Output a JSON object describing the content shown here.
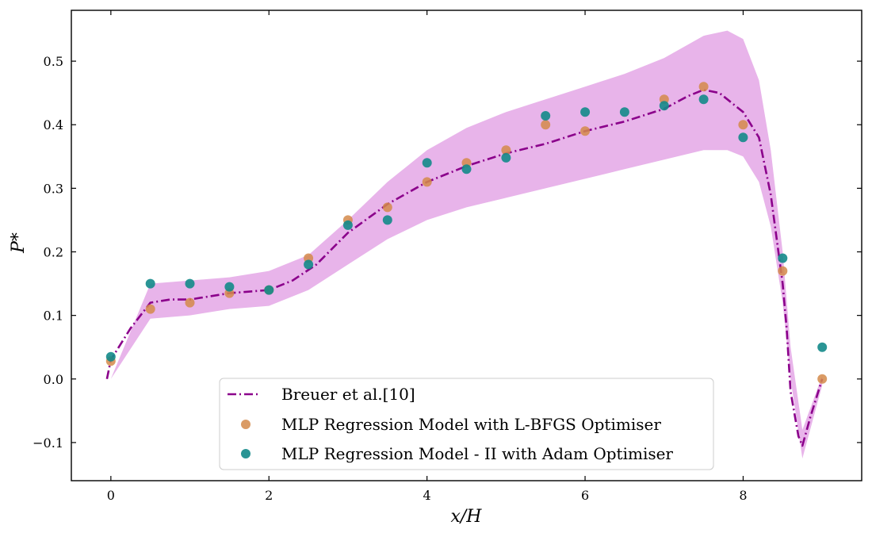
{
  "chart_data": {
    "type": "scatter",
    "title": "",
    "xlabel": "x/H",
    "ylabel": "P*",
    "xlim": [
      -0.5,
      9.5
    ],
    "ylim": [
      -0.16,
      0.58
    ],
    "xticks": [
      0,
      2,
      4,
      6,
      8
    ],
    "xtick_labels": [
      "0",
      "2",
      "4",
      "6",
      "8"
    ],
    "yticks": [
      -0.1,
      0.0,
      0.1,
      0.2,
      0.3,
      0.4,
      0.5
    ],
    "ytick_labels": [
      "−0.1",
      "0.0",
      "0.1",
      "0.2",
      "0.3",
      "0.4",
      "0.5"
    ],
    "grid": false,
    "legend_position": "bottom-center",
    "band": {
      "color": "#e8b4ea",
      "x": [
        0.0,
        0.5,
        1.0,
        1.5,
        2.0,
        2.5,
        3.0,
        3.5,
        4.0,
        4.5,
        5.0,
        5.5,
        6.0,
        6.5,
        7.0,
        7.5,
        7.8,
        8.0,
        8.2,
        8.35,
        8.5,
        8.6,
        8.75,
        9.0
      ],
      "lower": [
        0.0,
        0.095,
        0.1,
        0.11,
        0.115,
        0.14,
        0.18,
        0.22,
        0.25,
        0.27,
        0.285,
        0.3,
        0.315,
        0.33,
        0.345,
        0.36,
        0.36,
        0.35,
        0.31,
        0.24,
        0.12,
        0.0,
        -0.125,
        -0.01
      ],
      "upper": [
        0.0,
        0.15,
        0.155,
        0.16,
        0.17,
        0.195,
        0.25,
        0.31,
        0.36,
        0.395,
        0.42,
        0.44,
        0.46,
        0.48,
        0.505,
        0.54,
        0.548,
        0.535,
        0.47,
        0.36,
        0.2,
        0.05,
        -0.08,
        0.005
      ]
    },
    "series": [
      {
        "name": "Breuer et al.[10]",
        "kind": "line",
        "color": "#8b008b",
        "x": [
          -0.05,
          0.0,
          0.25,
          0.5,
          0.75,
          1.0,
          1.5,
          2.0,
          2.3,
          2.6,
          3.0,
          3.5,
          4.0,
          4.5,
          5.0,
          5.5,
          6.0,
          6.5,
          7.0,
          7.3,
          7.5,
          7.7,
          8.0,
          8.2,
          8.35,
          8.5,
          8.55,
          8.6,
          8.7,
          8.75,
          8.85,
          9.0
        ],
        "y": [
          0.0,
          0.03,
          0.08,
          0.12,
          0.125,
          0.125,
          0.135,
          0.14,
          0.155,
          0.18,
          0.23,
          0.275,
          0.31,
          0.335,
          0.355,
          0.37,
          0.39,
          0.405,
          0.425,
          0.445,
          0.455,
          0.45,
          0.42,
          0.38,
          0.29,
          0.15,
          0.08,
          -0.02,
          -0.09,
          -0.105,
          -0.06,
          0.0
        ]
      },
      {
        "name": "MLP Regression Model with L-BFGS Optimiser",
        "kind": "scatter",
        "color": "#d4894a",
        "x": [
          0,
          0.5,
          1.0,
          1.5,
          2.0,
          2.5,
          3.0,
          3.5,
          4.0,
          4.5,
          5.0,
          5.5,
          6.0,
          7.0,
          7.5,
          8.0,
          8.5,
          9.0
        ],
        "y": [
          0.028,
          0.11,
          0.12,
          0.135,
          0.14,
          0.19,
          0.25,
          0.27,
          0.31,
          0.34,
          0.36,
          0.4,
          0.39,
          0.44,
          0.46,
          0.4,
          0.17,
          0.0
        ]
      },
      {
        "name": "MLP Regression Model - II with Adam Optimiser",
        "kind": "scatter",
        "color": "#138a8a",
        "x": [
          0,
          0.5,
          1.0,
          1.5,
          2.0,
          2.5,
          3.0,
          3.5,
          4.0,
          4.5,
          5.0,
          5.5,
          6.0,
          6.5,
          7.0,
          7.5,
          8.0,
          8.5,
          9.0
        ],
        "y": [
          0.035,
          0.15,
          0.15,
          0.145,
          0.14,
          0.18,
          0.242,
          0.25,
          0.34,
          0.33,
          0.348,
          0.414,
          0.42,
          0.42,
          0.43,
          0.44,
          0.38,
          0.19,
          0.05
        ]
      }
    ]
  }
}
